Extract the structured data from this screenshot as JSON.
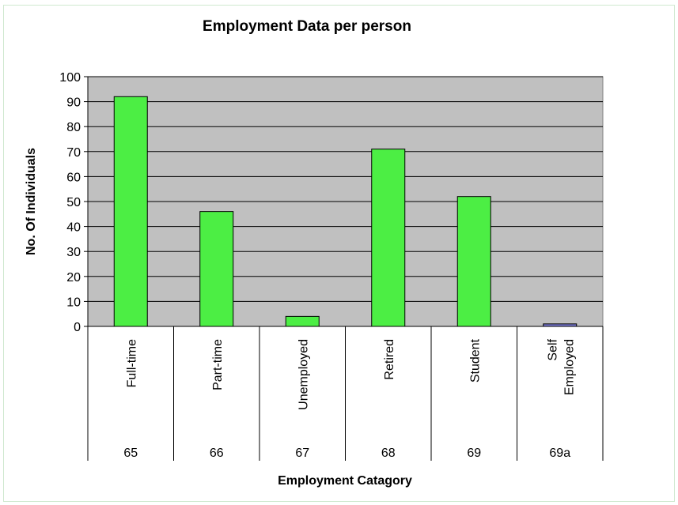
{
  "chart_data": {
    "type": "bar",
    "title": "Employment Data per person",
    "xlabel": "Employment Catagory",
    "ylabel": "No. Of Individuals",
    "ylim": [
      0,
      100
    ],
    "yticks": [
      0,
      10,
      20,
      30,
      40,
      50,
      60,
      70,
      80,
      90,
      100
    ],
    "grid": true,
    "categories": [
      {
        "label": [
          "Full-time"
        ],
        "code": "65"
      },
      {
        "label": [
          "Part-time"
        ],
        "code": "66"
      },
      {
        "label": [
          "Unemployed"
        ],
        "code": "67"
      },
      {
        "label": [
          "Retired"
        ],
        "code": "68"
      },
      {
        "label": [
          "Student"
        ],
        "code": "69"
      },
      {
        "label": [
          "Self",
          "Employed"
        ],
        "code": "69a"
      }
    ],
    "values": [
      92,
      46,
      4,
      71,
      52,
      1
    ],
    "bar_colors": [
      "#4cee44",
      "#4cee44",
      "#4cee44",
      "#4cee44",
      "#4cee44",
      "#7777cc"
    ],
    "plot_background": "#c0c0c0"
  }
}
